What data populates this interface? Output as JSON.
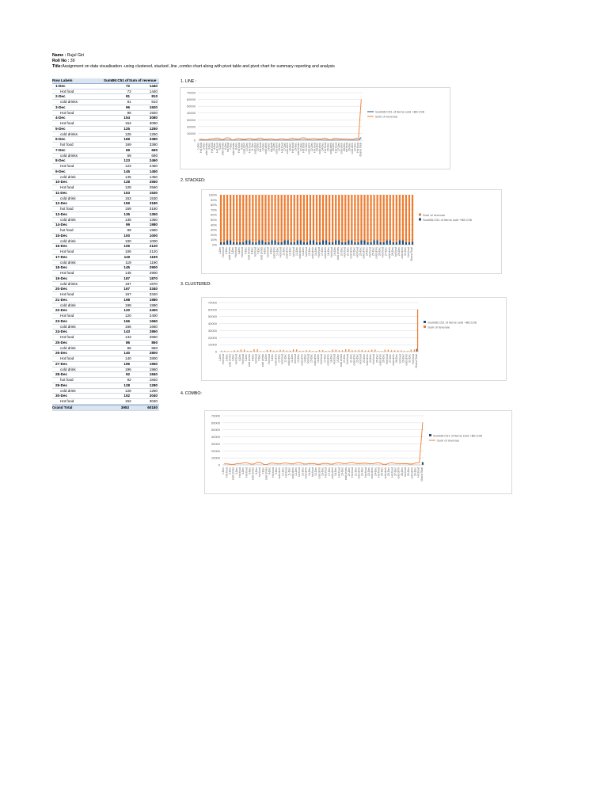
{
  "header": {
    "name_label": "Name :",
    "name_value": "Rujul Giri",
    "roll_label": "Roll No :",
    "roll_value": "39",
    "title_label": "Title:",
    "title_value": "Assignment on data visualisation -using clustered, stacked ,line ,combo chart along with pivot table and pivot chart for summary reporting and analysis"
  },
  "pivot": {
    "headers": [
      "Row Labels",
      "SumB6:C51 of iter",
      "Sum of revenue"
    ],
    "rows": [
      {
        "label": "1-Dec",
        "level": 0,
        "sold": "72",
        "revenue": "1440"
      },
      {
        "label": "Hot food",
        "level": 1,
        "sold": "72",
        "revenue": "1440"
      },
      {
        "label": "2-Dec",
        "level": 0,
        "sold": "81",
        "revenue": "810"
      },
      {
        "label": "cold drinks",
        "level": 1,
        "sold": "81",
        "revenue": "810"
      },
      {
        "label": "3-Dec",
        "level": 0,
        "sold": "96",
        "revenue": "1920"
      },
      {
        "label": "Hot food",
        "level": 1,
        "sold": "96",
        "revenue": "1920"
      },
      {
        "label": "4-Dec",
        "level": 0,
        "sold": "154",
        "revenue": "3080"
      },
      {
        "label": "Hot food",
        "level": 1,
        "sold": "154",
        "revenue": "3080"
      },
      {
        "label": "5-Dec",
        "level": 0,
        "sold": "125",
        "revenue": "1250"
      },
      {
        "label": "cold drinks",
        "level": 1,
        "sold": "125",
        "revenue": "1250"
      },
      {
        "label": "6-Dec",
        "level": 0,
        "sold": "169",
        "revenue": "3380"
      },
      {
        "label": "hot food",
        "level": 1,
        "sold": "169",
        "revenue": "3380"
      },
      {
        "label": "7-Dec",
        "level": 0,
        "sold": "69",
        "revenue": "690"
      },
      {
        "label": "cold drinks",
        "level": 1,
        "sold": "69",
        "revenue": "690"
      },
      {
        "label": "8-Dec",
        "level": 0,
        "sold": "123",
        "revenue": "2460"
      },
      {
        "label": "Hot food",
        "level": 1,
        "sold": "123",
        "revenue": "2460"
      },
      {
        "label": "9-Dec",
        "level": 0,
        "sold": "145",
        "revenue": "1450"
      },
      {
        "label": "cold drink",
        "level": 1,
        "sold": "145",
        "revenue": "1450"
      },
      {
        "label": "10-Dec",
        "level": 0,
        "sold": "128",
        "revenue": "2560"
      },
      {
        "label": "Hot food",
        "level": 1,
        "sold": "128",
        "revenue": "2560"
      },
      {
        "label": "11-Dec",
        "level": 0,
        "sold": "153",
        "revenue": "1530"
      },
      {
        "label": "cold drink",
        "level": 1,
        "sold": "153",
        "revenue": "1530"
      },
      {
        "label": "12-Dec",
        "level": 0,
        "sold": "159",
        "revenue": "3180"
      },
      {
        "label": "hot food",
        "level": 1,
        "sold": "159",
        "revenue": "3180"
      },
      {
        "label": "13-Dec",
        "level": 0,
        "sold": "135",
        "revenue": "1350"
      },
      {
        "label": "cold drink",
        "level": 1,
        "sold": "135",
        "revenue": "1350"
      },
      {
        "label": "14-Dec",
        "level": 0,
        "sold": "99",
        "revenue": "1980"
      },
      {
        "label": "hot food",
        "level": 1,
        "sold": "99",
        "revenue": "1980"
      },
      {
        "label": "15-Dec",
        "level": 0,
        "sold": "100",
        "revenue": "1000"
      },
      {
        "label": "cold drink",
        "level": 1,
        "sold": "100",
        "revenue": "1000"
      },
      {
        "label": "16-Dec",
        "level": 0,
        "sold": "106",
        "revenue": "2120"
      },
      {
        "label": "Hot food",
        "level": 1,
        "sold": "106",
        "revenue": "2120"
      },
      {
        "label": "17-Dec",
        "level": 0,
        "sold": "119",
        "revenue": "1190"
      },
      {
        "label": "cold drink",
        "level": 1,
        "sold": "119",
        "revenue": "1190"
      },
      {
        "label": "18-Dec",
        "level": 0,
        "sold": "145",
        "revenue": "2900"
      },
      {
        "label": "Hot food",
        "level": 1,
        "sold": "145",
        "revenue": "2900"
      },
      {
        "label": "19-Dec",
        "level": 0,
        "sold": "187",
        "revenue": "1870"
      },
      {
        "label": "cold drinks",
        "level": 1,
        "sold": "187",
        "revenue": "1870"
      },
      {
        "label": "20-Dec",
        "level": 0,
        "sold": "167",
        "revenue": "3340"
      },
      {
        "label": "Hot food",
        "level": 1,
        "sold": "167",
        "revenue": "3340"
      },
      {
        "label": "21-Dec",
        "level": 0,
        "sold": "198",
        "revenue": "1980"
      },
      {
        "label": "cold drink",
        "level": 1,
        "sold": "198",
        "revenue": "1980"
      },
      {
        "label": "22-Dec",
        "level": 0,
        "sold": "120",
        "revenue": "2400"
      },
      {
        "label": "Hot food",
        "level": 1,
        "sold": "120",
        "revenue": "2400"
      },
      {
        "label": "23-Dec",
        "level": 0,
        "sold": "166",
        "revenue": "1660"
      },
      {
        "label": "cold drink",
        "level": 1,
        "sold": "166",
        "revenue": "1660"
      },
      {
        "label": "24-Dec",
        "level": 0,
        "sold": "143",
        "revenue": "2860"
      },
      {
        "label": "Hot food",
        "level": 1,
        "sold": "143",
        "revenue": "2860"
      },
      {
        "label": "25-Dec",
        "level": 0,
        "sold": "86",
        "revenue": "860"
      },
      {
        "label": "cold drink",
        "level": 1,
        "sold": "86",
        "revenue": "860"
      },
      {
        "label": "26-Dec",
        "level": 0,
        "sold": "140",
        "revenue": "2800"
      },
      {
        "label": "Hot food",
        "level": 1,
        "sold": "140",
        "revenue": "2800"
      },
      {
        "label": "27-Dec",
        "level": 0,
        "sold": "196",
        "revenue": "1960"
      },
      {
        "label": "cold drink",
        "level": 1,
        "sold": "196",
        "revenue": "1960"
      },
      {
        "label": "28-Dec",
        "level": 0,
        "sold": "92",
        "revenue": "1840"
      },
      {
        "label": "hot food",
        "level": 1,
        "sold": "92",
        "revenue": "1840"
      },
      {
        "label": "29-Dec",
        "level": 0,
        "sold": "128",
        "revenue": "1280"
      },
      {
        "label": "cold drink",
        "level": 1,
        "sold": "128",
        "revenue": "1280"
      },
      {
        "label": "30-Dec",
        "level": 0,
        "sold": "152",
        "revenue": "3040"
      },
      {
        "label": "Hot food",
        "level": 1,
        "sold": "152",
        "revenue": "3040"
      }
    ],
    "total": {
      "label": "Grand Total",
      "sold": "3953",
      "revenue": "60180"
    }
  },
  "colors": {
    "series_sold": "#1f4e79",
    "series_revenue": "#ed7d31",
    "grid": "#d9d9d9",
    "pivot_header": "#dbe5f1"
  },
  "chart_data": [
    {
      "type": "line",
      "title": "1. LINE :",
      "categories_source": "pivot.rows + Grand Total",
      "series": [
        {
          "name": "SumB6:C51 of items sold +B6:C96",
          "source": "sold"
        },
        {
          "name": "Sum of revenue",
          "source": "revenue"
        }
      ],
      "ylim": [
        0,
        70000
      ],
      "yticks": [
        "0",
        "10000",
        "20000",
        "30000",
        "40000",
        "50000",
        "60000",
        "70000"
      ],
      "legend": "right"
    },
    {
      "type": "bar",
      "stacked_percent": true,
      "title": "2. STACKED:",
      "categories_source": "pivot.rows + Grand Total",
      "series": [
        {
          "name": "Sum of revenue",
          "source": "revenue"
        },
        {
          "name": "SumB6:C51 of items sold +B6:C96",
          "source": "sold"
        }
      ],
      "ylim": [
        0,
        100
      ],
      "yticks": [
        "0%",
        "10%",
        "20%",
        "30%",
        "40%",
        "50%",
        "60%",
        "70%",
        "80%",
        "90%",
        "100%"
      ],
      "legend": "right"
    },
    {
      "type": "bar",
      "title": "3. CLUSTERED:",
      "categories_source": "pivot.rows + Grand Total",
      "series": [
        {
          "name": "SumB6:C51 of items sold +B6:C96",
          "source": "sold"
        },
        {
          "name": "Sum of revenue",
          "source": "revenue"
        }
      ],
      "ylim": [
        0,
        70000
      ],
      "yticks": [
        "0",
        "10000",
        "20000",
        "30000",
        "40000",
        "50000",
        "60000",
        "70000"
      ],
      "legend": "right"
    },
    {
      "type": "bar+line",
      "title": "4. COMBO:",
      "categories_source": "pivot.rows + Grand Total",
      "series": [
        {
          "name": "SumB6:C51 of items sold +B6:C96",
          "source": "sold",
          "mark": "bar"
        },
        {
          "name": "Sum of revenue",
          "source": "revenue",
          "mark": "line"
        }
      ],
      "ylim": [
        0,
        70000
      ],
      "yticks": [
        "0",
        "10000",
        "20000",
        "30000",
        "40000",
        "50000",
        "60000",
        "70000"
      ],
      "legend": "right"
    }
  ]
}
